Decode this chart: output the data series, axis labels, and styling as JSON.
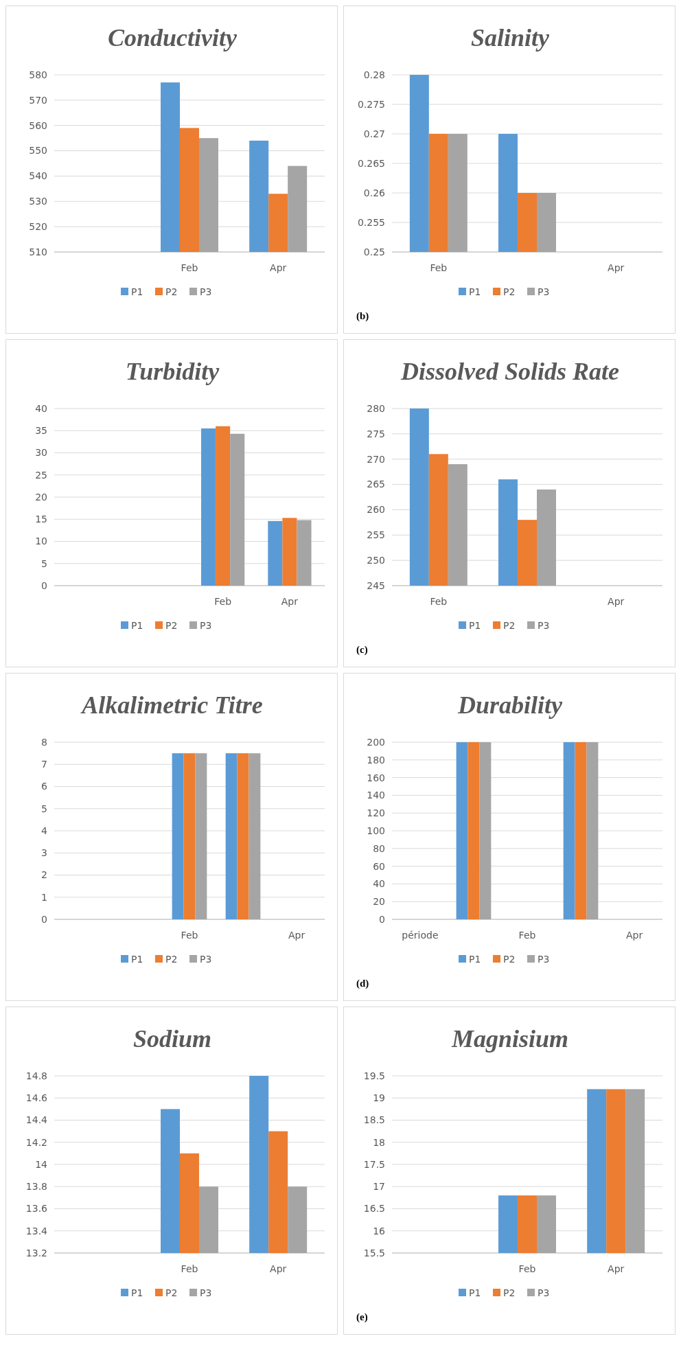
{
  "chart_data": [
    {
      "type": "bar",
      "title": "Conductivity",
      "categories": [
        null,
        "Feb",
        "Apr"
      ],
      "ylim": [
        510,
        580
      ],
      "yticks": [
        510,
        520,
        530,
        540,
        550,
        560,
        570,
        580
      ],
      "grid": "y",
      "legend": "bottom",
      "series": [
        {
          "name": "P1",
          "color": "#5b9bd5",
          "values": [
            null,
            577,
            554
          ]
        },
        {
          "name": "P2",
          "color": "#ed7d31",
          "values": [
            null,
            559,
            533
          ]
        },
        {
          "name": "P3",
          "color": "#a5a5a5",
          "values": [
            null,
            555,
            544
          ]
        }
      ]
    },
    {
      "type": "bar",
      "title": "Salinity",
      "categories": [
        "Feb",
        null,
        "Apr"
      ],
      "ylim": [
        0.25,
        0.28
      ],
      "yticks": [
        0.25,
        0.255,
        0.26,
        0.265,
        0.27,
        0.275,
        0.28
      ],
      "grid": "y",
      "legend": "bottom",
      "annotations": [
        "(b)"
      ],
      "series": [
        {
          "name": "P1",
          "color": "#5b9bd5",
          "values": [
            0.28,
            0.27,
            null
          ]
        },
        {
          "name": "P2",
          "color": "#ed7d31",
          "values": [
            0.27,
            0.26,
            null
          ]
        },
        {
          "name": "P3",
          "color": "#a5a5a5",
          "values": [
            0.27,
            0.26,
            null
          ]
        }
      ]
    },
    {
      "type": "bar",
      "title": "Turbidity",
      "categories": [
        null,
        null,
        "Feb",
        "Apr"
      ],
      "ylim": [
        0,
        40
      ],
      "yticks": [
        0,
        5,
        10,
        15,
        20,
        25,
        30,
        35,
        40
      ],
      "grid": "y",
      "legend": "bottom",
      "series": [
        {
          "name": "P1",
          "color": "#5b9bd5",
          "values": [
            null,
            null,
            35.5,
            14.6
          ]
        },
        {
          "name": "P2",
          "color": "#ed7d31",
          "values": [
            null,
            null,
            36,
            15.3
          ]
        },
        {
          "name": "P3",
          "color": "#a5a5a5",
          "values": [
            null,
            null,
            34.3,
            14.8
          ]
        }
      ]
    },
    {
      "type": "bar",
      "title": "Dissolved Solids Rate",
      "categories": [
        "Feb",
        null,
        "Apr"
      ],
      "ylim": [
        245,
        280
      ],
      "yticks": [
        245,
        250,
        255,
        260,
        265,
        270,
        275,
        280
      ],
      "grid": "y",
      "legend": "bottom",
      "annotations": [
        "(c)"
      ],
      "series": [
        {
          "name": "P1",
          "color": "#5b9bd5",
          "values": [
            280,
            266,
            null
          ]
        },
        {
          "name": "P2",
          "color": "#ed7d31",
          "values": [
            271,
            258,
            null
          ]
        },
        {
          "name": "P3",
          "color": "#a5a5a5",
          "values": [
            269,
            264,
            null
          ]
        }
      ]
    },
    {
      "type": "bar",
      "title": "Alkalimetric Titre",
      "categories": [
        null,
        null,
        "Feb",
        null,
        "Apr"
      ],
      "ylim": [
        0,
        8
      ],
      "yticks": [
        0,
        1,
        2,
        3,
        4,
        5,
        6,
        7,
        8
      ],
      "grid": "y",
      "legend": "bottom",
      "series": [
        {
          "name": "P1",
          "color": "#5b9bd5",
          "values": [
            null,
            null,
            7.5,
            7.5,
            null
          ]
        },
        {
          "name": "P2",
          "color": "#ed7d31",
          "values": [
            null,
            null,
            7.5,
            7.5,
            null
          ]
        },
        {
          "name": "P3",
          "color": "#a5a5a5",
          "values": [
            null,
            null,
            7.5,
            7.5,
            null
          ]
        }
      ]
    },
    {
      "type": "bar",
      "title": "Durability",
      "categories": [
        "période",
        null,
        "Feb",
        null,
        "Apr"
      ],
      "ylim": [
        0,
        200
      ],
      "yticks": [
        0,
        20,
        40,
        60,
        80,
        100,
        120,
        140,
        160,
        180,
        200
      ],
      "grid": "y",
      "legend": "bottom",
      "annotations": [
        "(d)"
      ],
      "series": [
        {
          "name": "P1",
          "color": "#5b9bd5",
          "values": [
            null,
            200,
            null,
            200,
            null
          ]
        },
        {
          "name": "P2",
          "color": "#ed7d31",
          "values": [
            null,
            200,
            null,
            200,
            null
          ]
        },
        {
          "name": "P3",
          "color": "#a5a5a5",
          "values": [
            null,
            200,
            null,
            200,
            null
          ]
        }
      ]
    },
    {
      "type": "bar",
      "title": "Sodium",
      "categories": [
        null,
        "Feb",
        "Apr"
      ],
      "ylim": [
        13.2,
        14.8
      ],
      "yticks": [
        13.2,
        13.4,
        13.6,
        13.8,
        14,
        14.2,
        14.4,
        14.6,
        14.8
      ],
      "grid": "y",
      "legend": "bottom",
      "series": [
        {
          "name": "P1",
          "color": "#5b9bd5",
          "values": [
            null,
            14.5,
            14.8
          ]
        },
        {
          "name": "P2",
          "color": "#ed7d31",
          "values": [
            null,
            14.1,
            14.3
          ]
        },
        {
          "name": "P3",
          "color": "#a5a5a5",
          "values": [
            null,
            13.8,
            13.8
          ]
        }
      ]
    },
    {
      "type": "bar",
      "title": "Magnisium",
      "categories": [
        null,
        "Feb",
        "Apr"
      ],
      "ylim": [
        15.5,
        19.5
      ],
      "yticks": [
        15.5,
        16,
        16.5,
        17,
        17.5,
        18,
        18.5,
        19,
        19.5
      ],
      "grid": "y",
      "legend": "bottom",
      "annotations": [
        "(e)"
      ],
      "series": [
        {
          "name": "P1",
          "color": "#5b9bd5",
          "values": [
            null,
            16.8,
            19.2
          ]
        },
        {
          "name": "P2",
          "color": "#ed7d31",
          "values": [
            null,
            16.8,
            19.2
          ]
        },
        {
          "name": "P3",
          "color": "#a5a5a5",
          "values": [
            null,
            16.8,
            19.2
          ]
        }
      ]
    }
  ]
}
